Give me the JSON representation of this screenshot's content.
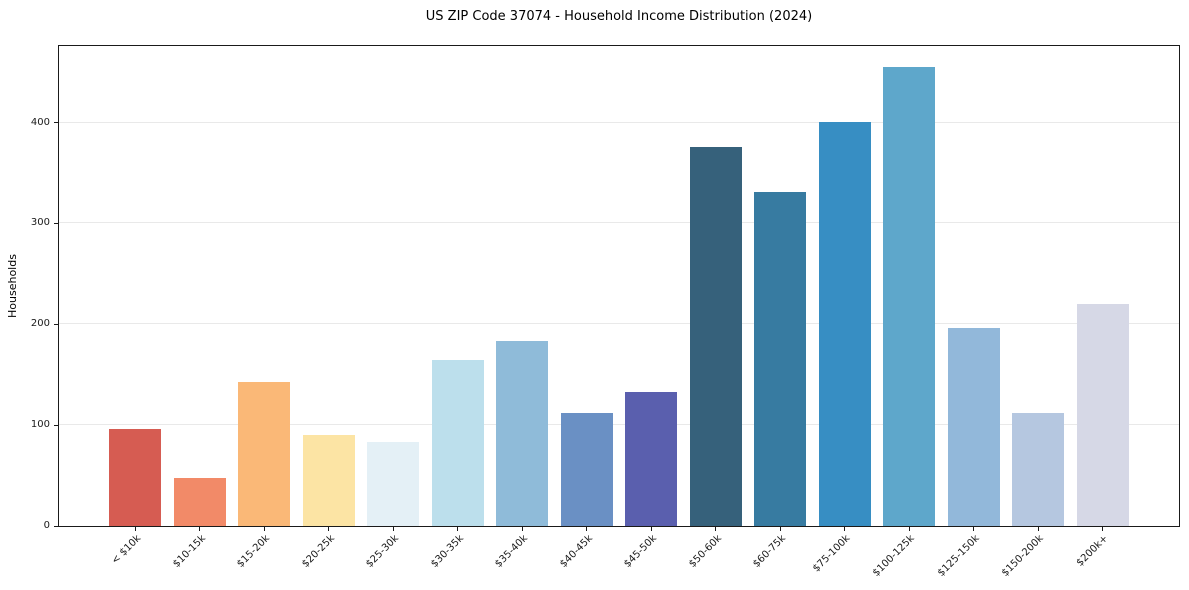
{
  "figure": {
    "background": "#ffffff"
  },
  "chart_data": {
    "type": "bar",
    "title": "US ZIP Code 37074 - Household Income Distribution (2024)",
    "ylabel": "Households",
    "xlabel": "",
    "categories": [
      "< $10k",
      "$10-15k",
      "$15-20k",
      "$20-25k",
      "$25-30k",
      "$30-35k",
      "$35-40k",
      "$40-45k",
      "$45-50k",
      "$50-60k",
      "$60-75k",
      "$75-100k",
      "$100-125k",
      "$125-150k",
      "$150-200k",
      "$200k+"
    ],
    "values": [
      96,
      48,
      143,
      90,
      83,
      165,
      183,
      112,
      133,
      376,
      331,
      401,
      455,
      196,
      112,
      220
    ],
    "bar_colors": [
      "#d65c52",
      "#f28a68",
      "#fab877",
      "#fce4a4",
      "#e4f0f6",
      "#bcdfec",
      "#8fbbd9",
      "#6a90c4",
      "#5a5fae",
      "#36617b",
      "#377ba1",
      "#378ec3",
      "#5ea7cb",
      "#92b8da",
      "#b5c7e0",
      "#d6d8e6"
    ],
    "yticks": [
      0,
      100,
      200,
      300,
      400
    ],
    "ylim": [
      0,
      476
    ],
    "grid": "horizontal-only",
    "gridline_color": "#e9e9e9",
    "axis_color": "#1a1a1a",
    "text_color": "#1a1a1a",
    "x_tick_rotation_deg": 45,
    "legend": "none"
  }
}
